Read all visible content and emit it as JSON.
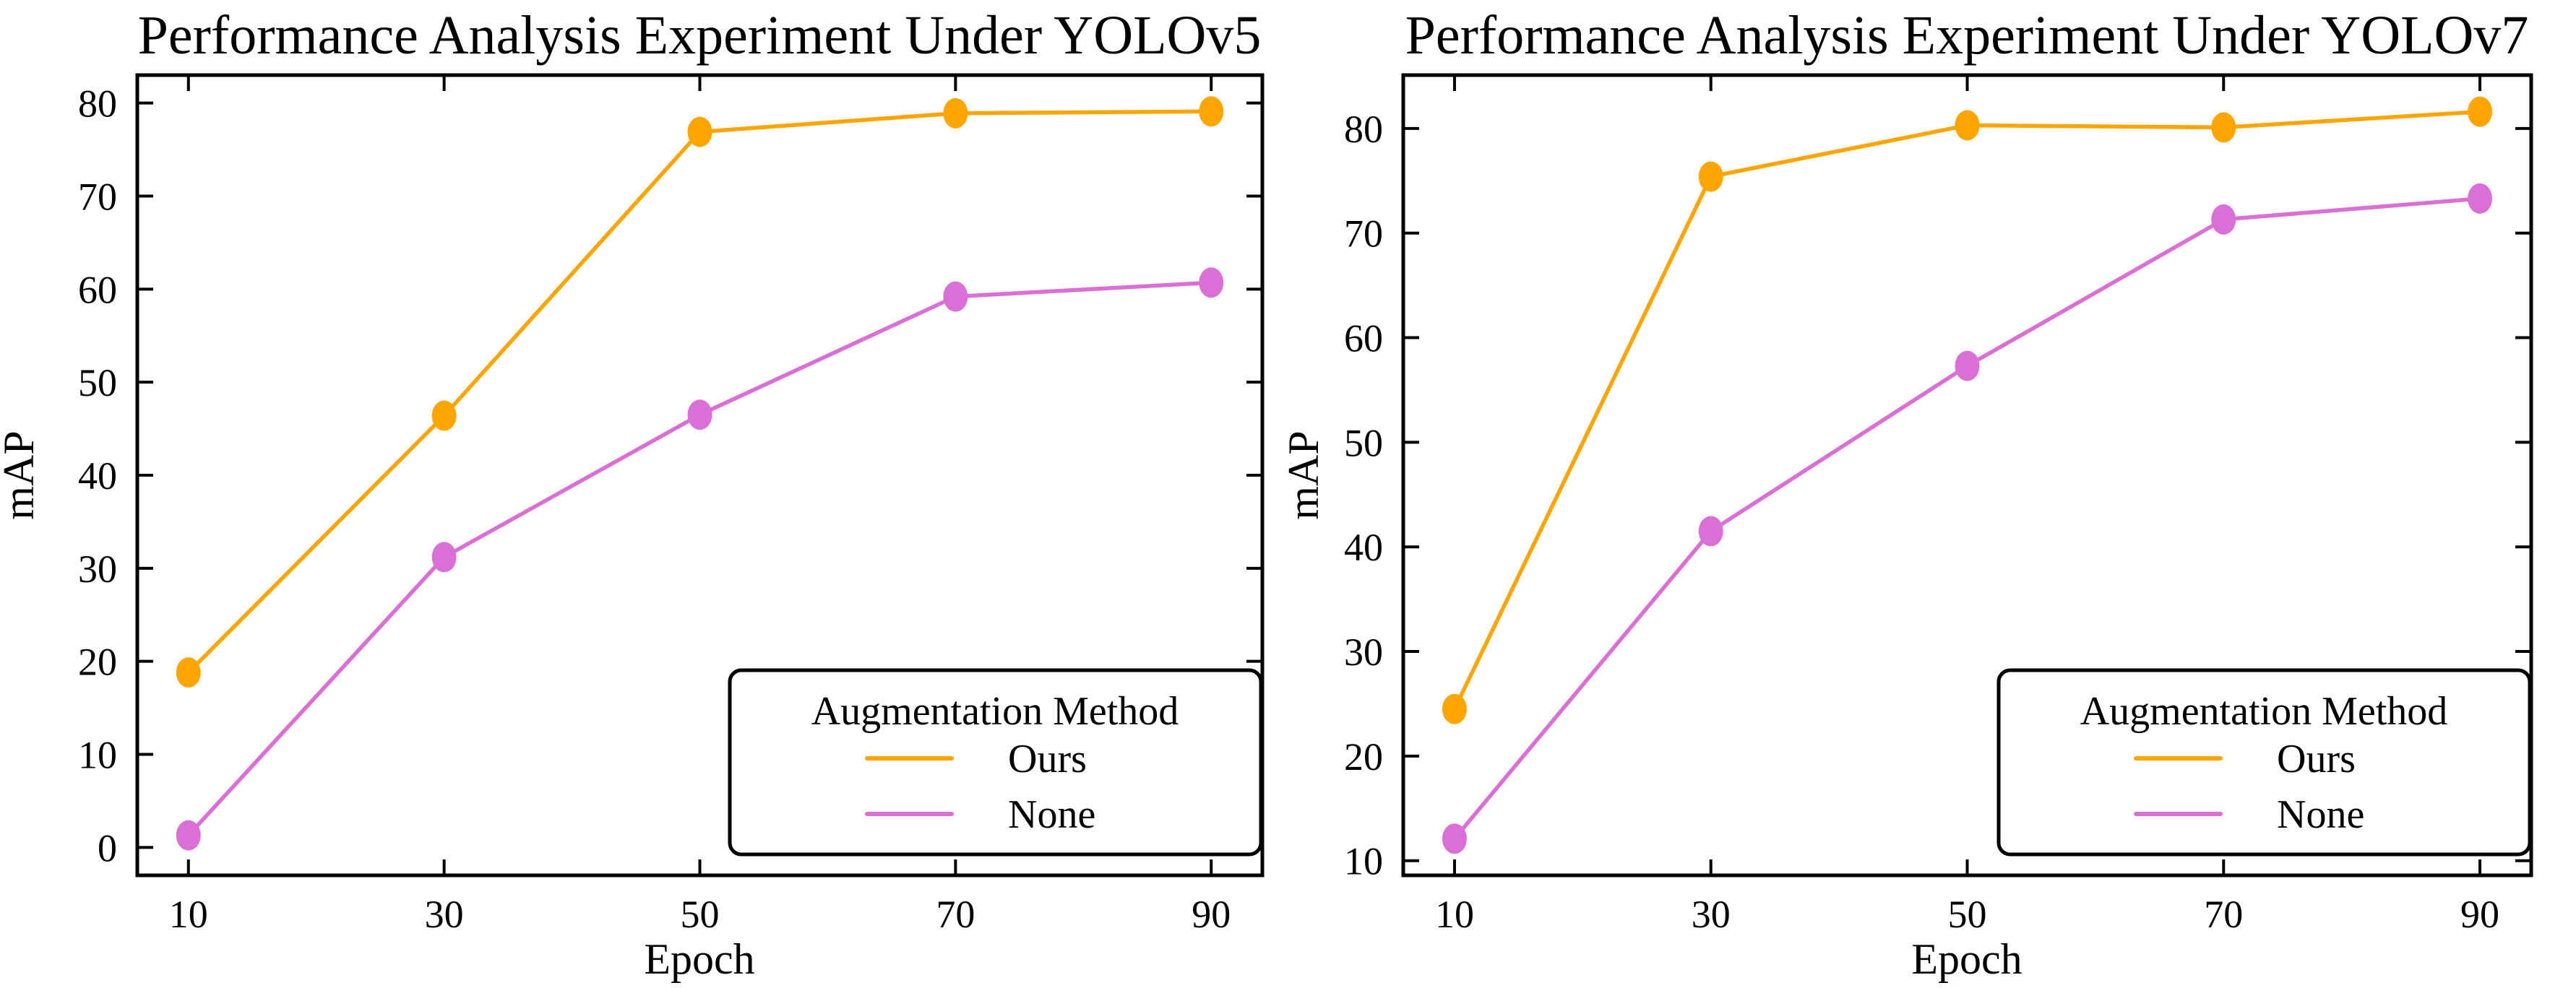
{
  "chart_data": [
    {
      "type": "line",
      "title": "Performance Analysis Experiment Under YOLOv5",
      "xlabel": "Epoch",
      "ylabel": "mAP",
      "x": [
        10,
        30,
        50,
        70,
        90
      ],
      "xticks": [
        10,
        30,
        50,
        70,
        90
      ],
      "yticks": [
        0,
        10,
        20,
        30,
        40,
        50,
        60,
        70,
        80
      ],
      "xlim": [
        6,
        94
      ],
      "ylim": [
        -3.0,
        83.0
      ],
      "grid": false,
      "legend_title": "Augmentation Method",
      "legend_position": "lower right",
      "series": [
        {
          "name": "Ours",
          "color": "#FFA500",
          "values": [
            18.8,
            46.4,
            76.9,
            78.9,
            79.1
          ]
        },
        {
          "name": "None",
          "color": "#DA70D6",
          "values": [
            1.3,
            31.2,
            46.5,
            59.2,
            60.7
          ]
        }
      ]
    },
    {
      "type": "line",
      "title": "Performance Analysis Experiment Under YOLOv7",
      "xlabel": "Epoch",
      "ylabel": "mAP",
      "x": [
        10,
        30,
        50,
        70,
        90
      ],
      "xticks": [
        10,
        30,
        50,
        70,
        90
      ],
      "yticks": [
        10,
        20,
        30,
        40,
        50,
        60,
        70,
        80
      ],
      "xlim": [
        6,
        94
      ],
      "ylim": [
        8.6,
        85.1
      ],
      "grid": false,
      "legend_title": "Augmentation Method",
      "legend_position": "lower right",
      "series": [
        {
          "name": "Ours",
          "color": "#FFA500",
          "values": [
            24.5,
            75.4,
            80.3,
            80.1,
            81.6
          ]
        },
        {
          "name": "None",
          "color": "#DA70D6",
          "values": [
            12.1,
            41.5,
            57.3,
            71.3,
            73.3
          ]
        }
      ]
    }
  ],
  "style": {
    "series_orange": "#FFA500",
    "series_magenta": "#DA70D6",
    "axis_color": "#000000",
    "background": "#ffffff"
  }
}
